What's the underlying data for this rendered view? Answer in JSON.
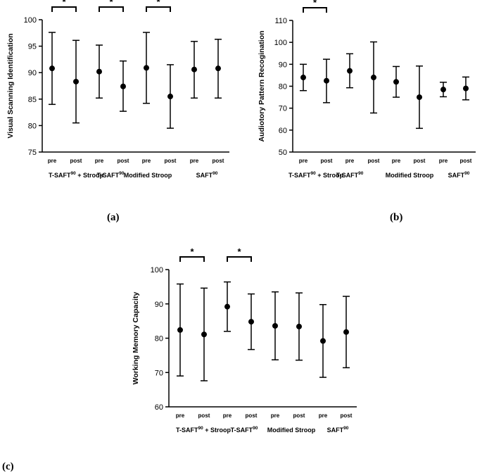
{
  "chart_data": [
    {
      "type": "scatter",
      "panel_label": "(a)",
      "ylabel": "Visual Scanning Identification",
      "ylim": [
        75,
        100
      ],
      "yticks": [
        "75",
        "80",
        "85",
        "90",
        "95",
        "100"
      ],
      "xtick_labels": [
        "pre",
        "post",
        "pre",
        "post",
        "pre",
        "post",
        "pre",
        "post"
      ],
      "groups": [
        {
          "name": "T-SAFT",
          "sup": "90",
          "tail": " + Stroop"
        },
        {
          "name": "T-SAFT",
          "sup": "90",
          "tail": ""
        },
        {
          "name": "Modified Stroop",
          "sup": "",
          "tail": ""
        },
        {
          "name": "SAFT",
          "sup": "90",
          "tail": ""
        }
      ],
      "points": [
        {
          "mean": 90.8,
          "low": 84.0,
          "high": 97.6
        },
        {
          "mean": 88.3,
          "low": 80.5,
          "high": 96.1
        },
        {
          "mean": 90.2,
          "low": 85.2,
          "high": 95.2
        },
        {
          "mean": 87.4,
          "low": 82.7,
          "high": 92.2
        },
        {
          "mean": 90.9,
          "low": 84.2,
          "high": 97.6
        },
        {
          "mean": 85.5,
          "low": 79.5,
          "high": 91.5
        },
        {
          "mean": 90.6,
          "low": 85.2,
          "high": 95.9
        },
        {
          "mean": 90.8,
          "low": 85.2,
          "high": 96.3
        }
      ],
      "significance": [
        {
          "from": 0,
          "to": 1,
          "mark": "*"
        },
        {
          "from": 2,
          "to": 3,
          "mark": "*"
        },
        {
          "from": 4,
          "to": 5,
          "mark": "*"
        }
      ],
      "grid": false
    },
    {
      "type": "scatter",
      "panel_label": "(b)",
      "ylabel": "Audiotory Pattern Recogination",
      "ylim": [
        50,
        110
      ],
      "yticks": [
        "50",
        "60",
        "70",
        "80",
        "90",
        "100",
        "110"
      ],
      "xtick_labels": [
        "pre",
        "post",
        "pre",
        "post",
        "pre",
        "post",
        "pre",
        "post"
      ],
      "groups": [
        {
          "name": "T-SAFT",
          "sup": "90",
          "tail": " + Stroop"
        },
        {
          "name": "T-SAFT",
          "sup": "90",
          "tail": ""
        },
        {
          "name": "Modified Stroop",
          "sup": "",
          "tail": ""
        },
        {
          "name": "SAFT",
          "sup": "90",
          "tail": ""
        }
      ],
      "points": [
        {
          "mean": 84.0,
          "low": 78.0,
          "high": 90.0
        },
        {
          "mean": 82.5,
          "low": 72.5,
          "high": 92.3
        },
        {
          "mean": 87.0,
          "low": 79.3,
          "high": 94.8
        },
        {
          "mean": 84.0,
          "low": 67.8,
          "high": 100.2
        },
        {
          "mean": 82.0,
          "low": 75.0,
          "high": 89.0
        },
        {
          "mean": 75.0,
          "low": 60.8,
          "high": 89.2
        },
        {
          "mean": 78.5,
          "low": 75.2,
          "high": 81.8
        },
        {
          "mean": 79.0,
          "low": 73.8,
          "high": 84.2
        }
      ],
      "significance": [
        {
          "from": 0,
          "to": 1,
          "mark": "*"
        }
      ],
      "grid": false
    },
    {
      "type": "scatter",
      "panel_label": "(c)",
      "ylabel": "Working Memory Capacity",
      "ylim": [
        60,
        100
      ],
      "yticks": [
        "60",
        "70",
        "80",
        "90",
        "100"
      ],
      "xtick_labels": [
        "pre",
        "post",
        "pre",
        "post",
        "pre",
        "post",
        "pre",
        "post"
      ],
      "groups": [
        {
          "name": "T-SAFT",
          "sup": "90",
          "tail": " + Stroop"
        },
        {
          "name": "T-SAFT",
          "sup": "90",
          "tail": ""
        },
        {
          "name": "Modified Stroop",
          "sup": "",
          "tail": ""
        },
        {
          "name": "SAFT",
          "sup": "90",
          "tail": ""
        }
      ],
      "points": [
        {
          "mean": 82.4,
          "low": 69.0,
          "high": 95.8
        },
        {
          "mean": 81.1,
          "low": 67.6,
          "high": 94.6
        },
        {
          "mean": 89.2,
          "low": 82.0,
          "high": 96.4
        },
        {
          "mean": 84.8,
          "low": 76.7,
          "high": 92.9
        },
        {
          "mean": 83.6,
          "low": 73.7,
          "high": 93.5
        },
        {
          "mean": 83.4,
          "low": 73.6,
          "high": 93.2
        },
        {
          "mean": 79.2,
          "low": 68.6,
          "high": 89.8
        },
        {
          "mean": 81.8,
          "low": 71.4,
          "high": 92.2
        }
      ],
      "significance": [
        {
          "from": 0,
          "to": 1,
          "mark": "*"
        },
        {
          "from": 2,
          "to": 3,
          "mark": "*"
        }
      ],
      "grid": false
    }
  ]
}
